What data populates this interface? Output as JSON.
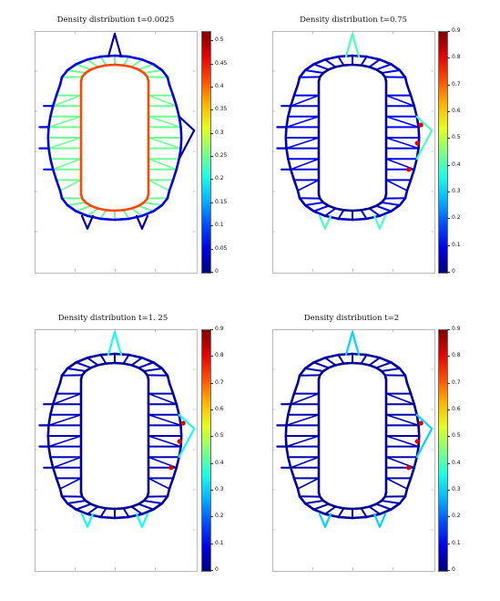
{
  "colormap": "jet",
  "colors": {
    "low": "#00008f",
    "mid_low": "#0080ff",
    "mid": "#7fff7f",
    "mid_high": "#ff8000",
    "high": "#800000",
    "frame": "#b9b9b9",
    "background": "#ffffff"
  },
  "chart_data": [
    {
      "type": "heatmap",
      "title": "Density distribution t=0.0025",
      "colorbar": {
        "ticks": [
          "0.5",
          "0.45",
          "0.4",
          "0.35",
          "0.3",
          "0.25",
          "0.2",
          "0.15",
          "0.1",
          "0.05",
          "0"
        ],
        "range": [
          0,
          0.52
        ]
      },
      "description_values": {
        "inner_ring_density": 0.42,
        "spokes_density": 0.25,
        "outer_ring_density": 0.05,
        "spikes_density": 0.02
      }
    },
    {
      "type": "heatmap",
      "title": "Density distribution t=0.75",
      "colorbar": {
        "ticks": [
          "0.9",
          "0.8",
          "0.7",
          "0.6",
          "0.5",
          "0.4",
          "0.3",
          "0.2",
          "0.1",
          "0"
        ],
        "range": [
          0,
          0.9
        ]
      },
      "description_values": {
        "inner_ring_density": 0.02,
        "spokes_density": 0.1,
        "outer_ring_density": 0.05,
        "spikes_density": 0.4
      }
    },
    {
      "type": "heatmap",
      "title": "Density distribution t=1. 25",
      "colorbar": {
        "ticks": [
          "0.9",
          "0.8",
          "0.7",
          "0.6",
          "0.5",
          "0.4",
          "0.3",
          "0.2",
          "0.1",
          "0"
        ],
        "range": [
          0,
          0.9
        ]
      },
      "description_values": {
        "inner_ring_density": 0.02,
        "spokes_density": 0.05,
        "outer_ring_density": 0.03,
        "spikes_density": 0.35
      }
    },
    {
      "type": "heatmap",
      "title": "Density distribution t=2",
      "colorbar": {
        "ticks": [
          "0.9",
          "0.8",
          "0.7",
          "0.6",
          "0.5",
          "0.4",
          "0.3",
          "0.2",
          "0.1",
          "0"
        ],
        "range": [
          0,
          0.9
        ]
      },
      "description_values": {
        "inner_ring_density": 0.02,
        "spokes_density": 0.04,
        "outer_ring_density": 0.03,
        "spikes_density": 0.3
      }
    }
  ]
}
